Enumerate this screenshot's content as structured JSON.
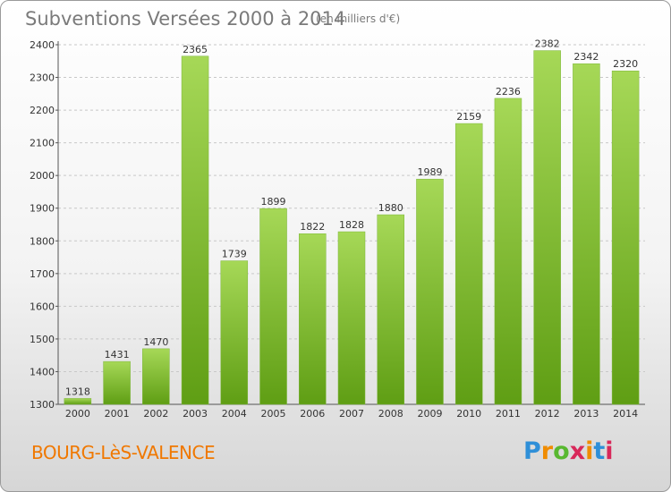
{
  "page": {
    "title": "Subventions Versées 2000 à 2014",
    "subtitle": "(en milliers d'€)",
    "commune": "BOURG-LèS-VALENCE",
    "logo_text": "Proxiti",
    "colors": {
      "bar_light": "#a6d857",
      "bar_dark": "#5f9e14",
      "title": "#7a7a7a",
      "commune": "#f07800",
      "grid": "#c8c8c8"
    }
  },
  "chart_data": {
    "type": "bar",
    "title": "Subventions Versées 2000 à 2014",
    "subtitle": "(en milliers d'€)",
    "xlabel": "",
    "ylabel": "",
    "categories": [
      "2000",
      "2001",
      "2002",
      "2003",
      "2004",
      "2005",
      "2006",
      "2007",
      "2008",
      "2009",
      "2010",
      "2011",
      "2012",
      "2013",
      "2014"
    ],
    "values": [
      1318,
      1431,
      1470,
      2365,
      1739,
      1899,
      1822,
      1828,
      1880,
      1989,
      2159,
      2236,
      2382,
      2342,
      2320
    ],
    "ylim": [
      1300,
      2400
    ],
    "yticks": [
      1300,
      1400,
      1500,
      1600,
      1700,
      1800,
      1900,
      2000,
      2100,
      2200,
      2300,
      2400
    ],
    "grid": true,
    "grid_style": "dashed-horizontal",
    "legend": "none"
  }
}
